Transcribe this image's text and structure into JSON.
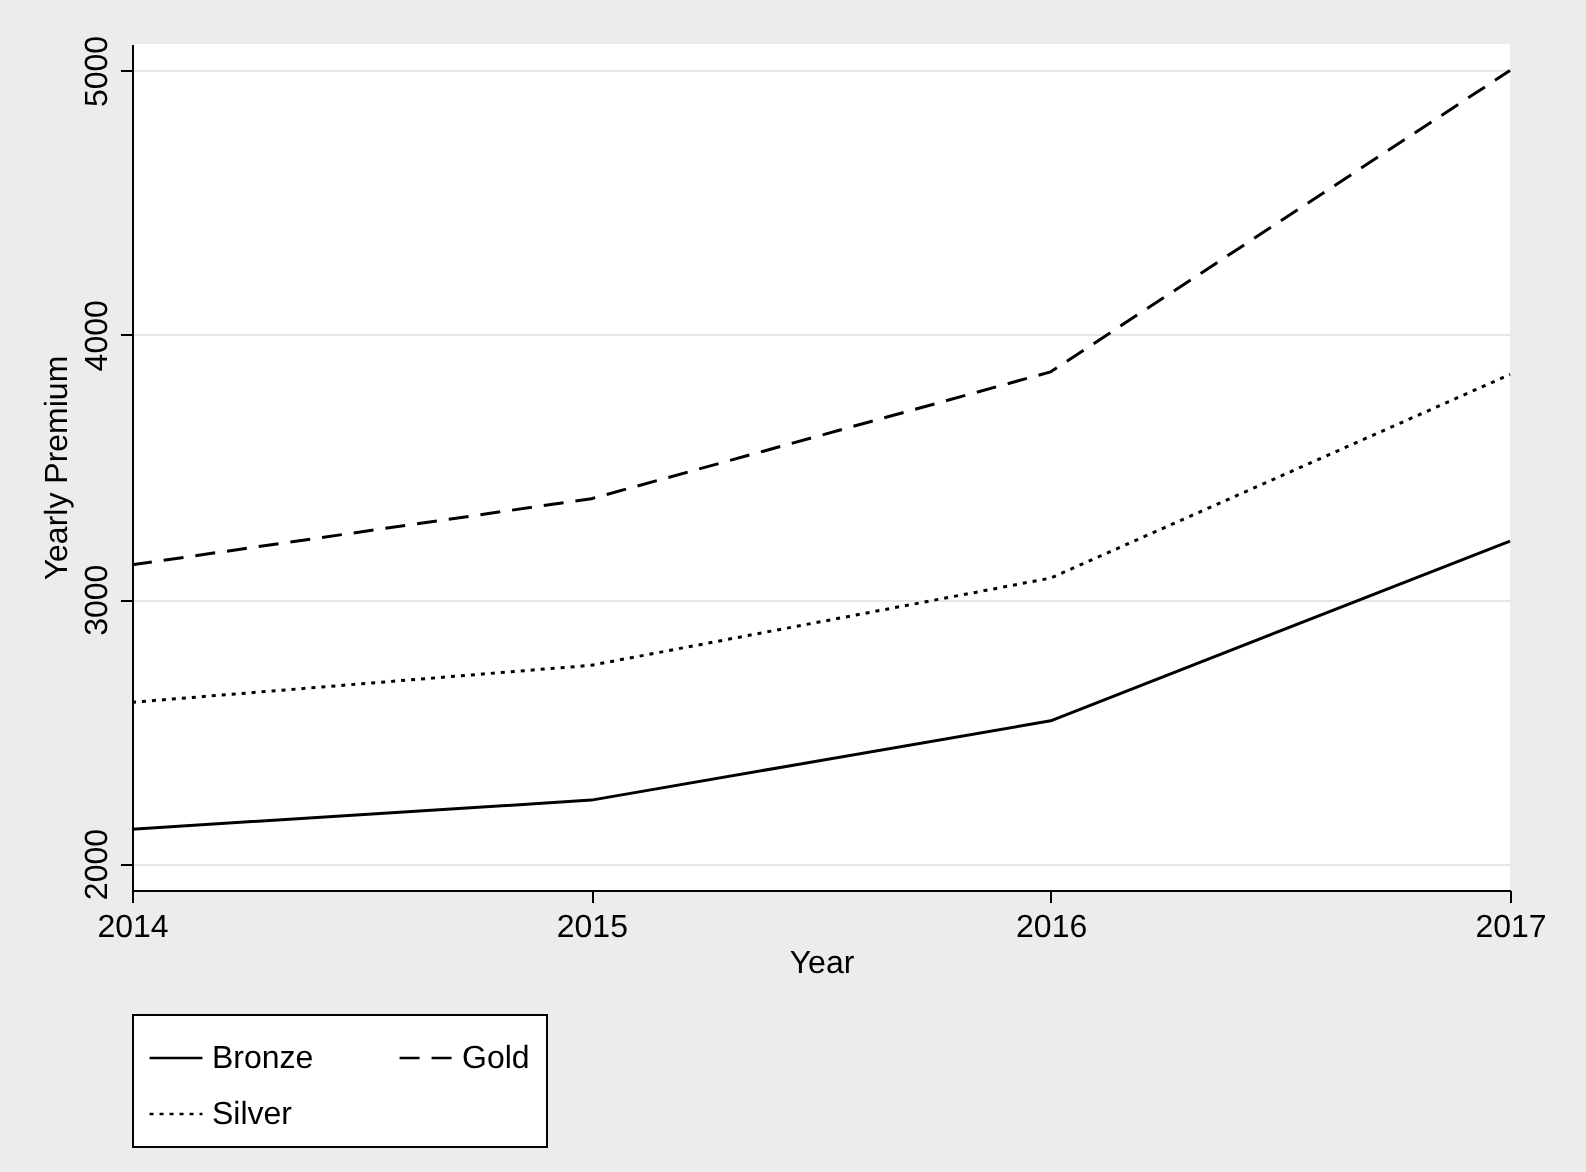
{
  "chart_data": {
    "type": "line",
    "xlabel": "Year",
    "ylabel": "Yearly Premium",
    "x": [
      2014,
      2015,
      2016,
      2017
    ],
    "series": [
      {
        "name": "Bronze",
        "color": "#000000",
        "line_style": "solid",
        "values": [
          2130,
          2240,
          2540,
          3220
        ]
      },
      {
        "name": "Gold",
        "color": "#000000",
        "line_style": "dashed",
        "values": [
          3130,
          3380,
          3860,
          5000
        ]
      },
      {
        "name": "Silver",
        "color": "#000000",
        "line_style": "dotted",
        "values": [
          2610,
          2750,
          3080,
          3850
        ]
      }
    ],
    "xlim": [
      2014,
      2017
    ],
    "xticks": [
      2014,
      2015,
      2016,
      2017
    ],
    "ylim": [
      1900,
      5100
    ],
    "yticks": [
      2000,
      3000,
      4000,
      5000
    ],
    "grid": "y",
    "legend": "bottom",
    "marker": "none"
  }
}
